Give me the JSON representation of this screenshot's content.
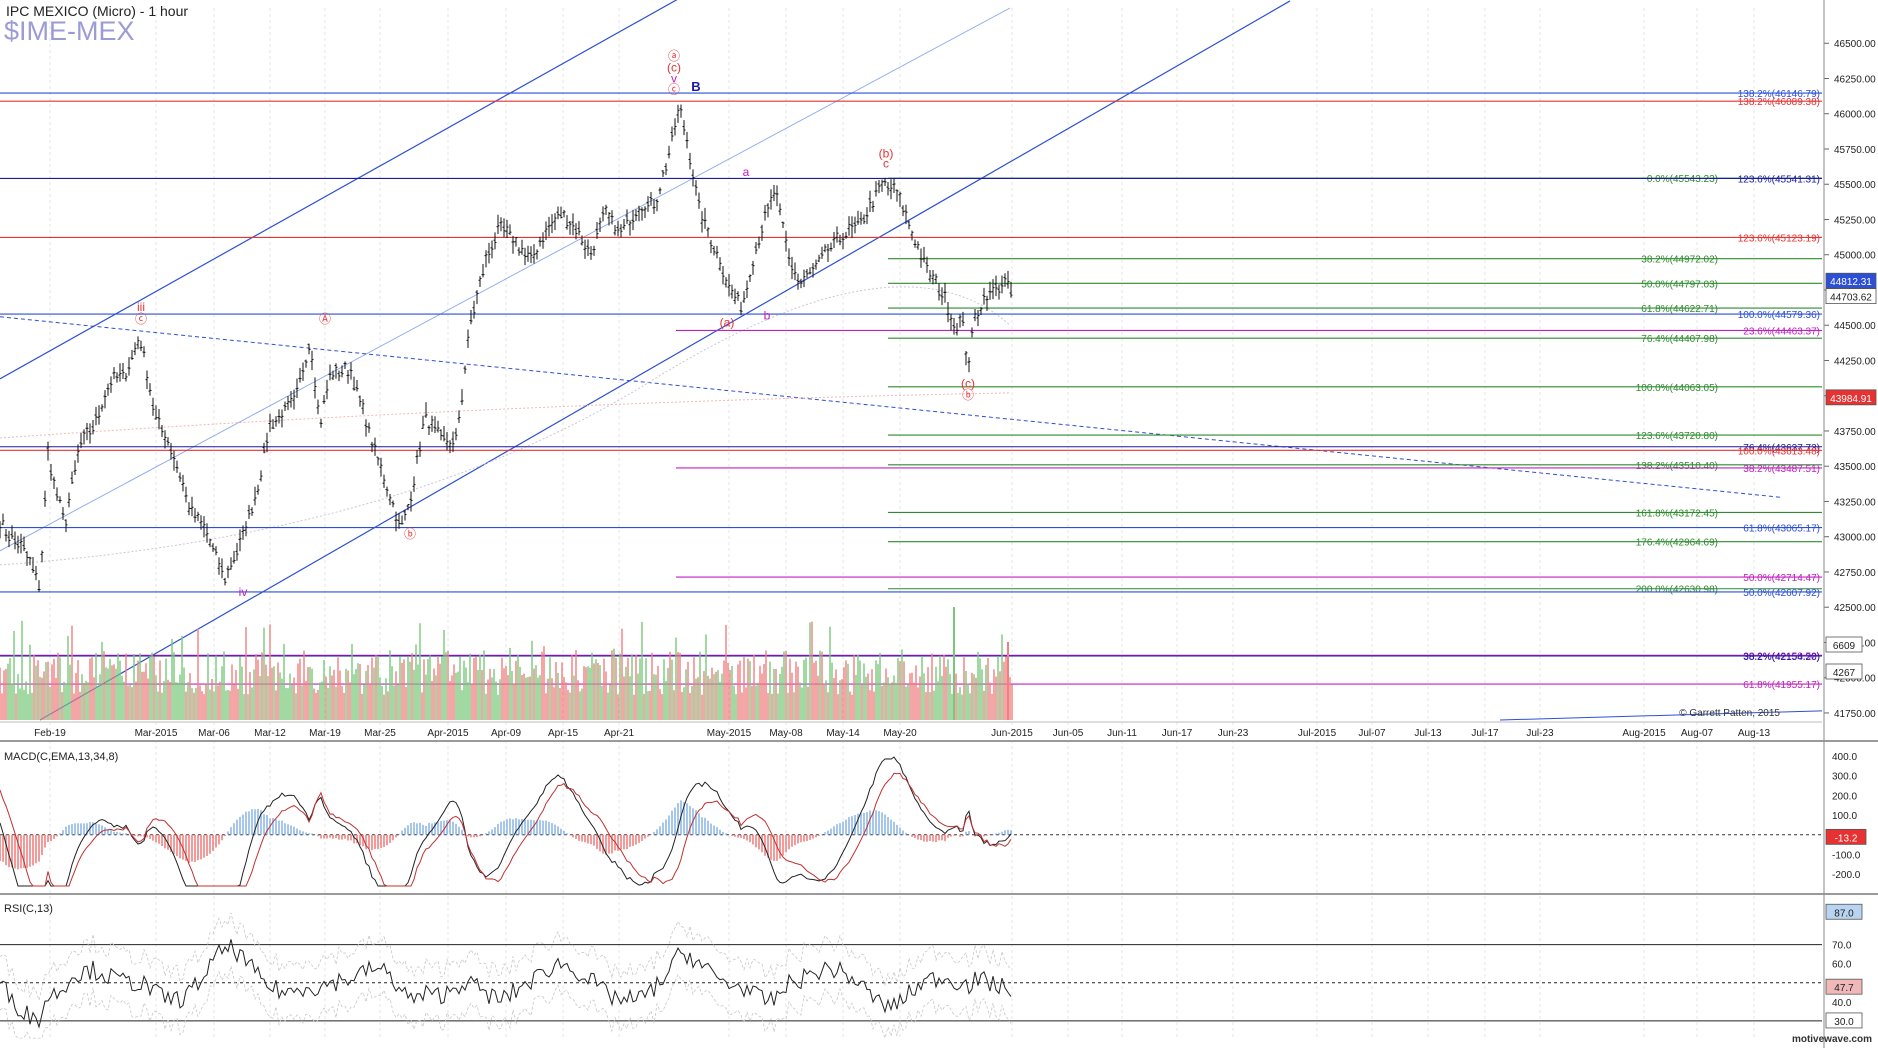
{
  "header": {
    "title": "IPC MEXICO (Micro) - 1 hour",
    "symbol": "$IME-MEX"
  },
  "watermark": "motivewave.com",
  "copyright": "© Garrett Patten, 2015",
  "colors": {
    "blue": "#2d4fd6",
    "red": "#e63232",
    "green": "#2e8b2e",
    "magenta": "#c020c0",
    "darkblue": "#1a1aa0",
    "price_bar": "#111111",
    "vol_up": "#7ac77a",
    "vol_down": "#f08080",
    "hist_up": "#8fb8e8",
    "hist_down": "#f08080"
  },
  "chart_data": [
    {
      "type": "line",
      "name": "price",
      "ylim": [
        41700,
        46750
      ],
      "x_tick_labels": [
        "Feb-19",
        "Mar-2015",
        "Mar-06",
        "Mar-12",
        "Mar-19",
        "Mar-25",
        "Apr-2015",
        "Apr-09",
        "Apr-15",
        "Apr-21",
        "May-2015",
        "May-08",
        "May-14",
        "May-20",
        "Jun-2015",
        "Jun-05",
        "Jun-11",
        "Jun-17",
        "Jun-23",
        "Jul-2015",
        "Jul-07",
        "Jul-13",
        "Jul-17",
        "Jul-23",
        "Aug-2015",
        "Aug-07",
        "Aug-13"
      ],
      "y_ticks": [
        41750,
        42000,
        42250,
        42500,
        42750,
        43000,
        43250,
        43500,
        43750,
        44000,
        44250,
        44500,
        44750,
        45000,
        45250,
        45500,
        45750,
        46000,
        46250,
        46500
      ],
      "y_tick_labels": [
        "41750.00",
        "42000.00",
        "42250.00",
        "42500.00",
        "42750.00",
        "43000.00",
        "43250.00",
        "43500.00",
        "43750.00",
        "44000.00",
        "44250.00",
        "44500.00",
        "44750.00",
        "45000.00",
        "45250.00",
        "45500.00",
        "45750.00",
        "46000.00",
        "46250.00",
        "46500.00"
      ],
      "price_tags": [
        {
          "label": "44812.31",
          "value": 44812,
          "color": "#2d4fd6"
        },
        {
          "label": "44703.62",
          "value": 44703,
          "color": "#ffffff"
        },
        {
          "label": "43984.91",
          "value": 43985,
          "color": "#e63232"
        }
      ],
      "keypoints": [
        [
          0,
          43100
        ],
        [
          10,
          43000
        ],
        [
          25,
          42900
        ],
        [
          40,
          42650
        ],
        [
          48,
          43600
        ],
        [
          55,
          43350
        ],
        [
          65,
          43100
        ],
        [
          80,
          43650
        ],
        [
          95,
          43800
        ],
        [
          110,
          44100
        ],
        [
          125,
          44150
        ],
        [
          140,
          44420
        ],
        [
          155,
          43850
        ],
        [
          170,
          43650
        ],
        [
          190,
          43200
        ],
        [
          205,
          43050
        ],
        [
          225,
          42700
        ],
        [
          240,
          42950
        ],
        [
          258,
          43350
        ],
        [
          270,
          43800
        ],
        [
          295,
          43950
        ],
        [
          310,
          44400
        ],
        [
          320,
          43800
        ],
        [
          330,
          44150
        ],
        [
          350,
          44200
        ],
        [
          375,
          43600
        ],
        [
          390,
          43300
        ],
        [
          400,
          43050
        ],
        [
          410,
          43250
        ],
        [
          425,
          43850
        ],
        [
          440,
          43700
        ],
        [
          455,
          43650
        ],
        [
          462,
          44000
        ],
        [
          470,
          44500
        ],
        [
          485,
          44950
        ],
        [
          500,
          45200
        ],
        [
          515,
          45100
        ],
        [
          530,
          44950
        ],
        [
          545,
          45150
        ],
        [
          560,
          45300
        ],
        [
          575,
          45200
        ],
        [
          590,
          45000
        ],
        [
          605,
          45300
        ],
        [
          620,
          45150
        ],
        [
          640,
          45350
        ],
        [
          655,
          45350
        ],
        [
          670,
          45750
        ],
        [
          680,
          46050
        ],
        [
          690,
          45700
        ],
        [
          700,
          45300
        ],
        [
          715,
          45050
        ],
        [
          730,
          44750
        ],
        [
          742,
          44620
        ],
        [
          752,
          44950
        ],
        [
          762,
          45200
        ],
        [
          775,
          45450
        ],
        [
          790,
          44950
        ],
        [
          800,
          44800
        ],
        [
          815,
          44900
        ],
        [
          830,
          45050
        ],
        [
          845,
          45150
        ],
        [
          858,
          45200
        ],
        [
          870,
          45350
        ],
        [
          882,
          45500
        ],
        [
          896,
          45450
        ],
        [
          905,
          45300
        ],
        [
          915,
          45100
        ],
        [
          930,
          44850
        ],
        [
          945,
          44700
        ],
        [
          955,
          44480
        ],
        [
          962,
          44550
        ],
        [
          968,
          44200
        ],
        [
          975,
          44550
        ],
        [
          985,
          44700
        ],
        [
          995,
          44750
        ],
        [
          1005,
          44812
        ],
        [
          1012,
          44712
        ]
      ]
    },
    {
      "type": "bar",
      "name": "volume",
      "tags": [
        {
          "label": "6609",
          "value": 6609
        },
        {
          "label": "4267",
          "value": 4267
        }
      ]
    },
    {
      "type": "line",
      "name": "MACD(C,EMA,13,34,8)",
      "ylim": [
        -280,
        460
      ],
      "y_ticks": [
        400,
        300,
        200,
        100,
        -100,
        -200
      ],
      "y_tick_labels": [
        "400.0",
        "300.0",
        "200.0",
        "100.0",
        "-100.0",
        "-200.0"
      ],
      "tag": {
        "label": "-13.2",
        "value": -13.2
      }
    },
    {
      "type": "line",
      "name": "RSI(C,13)",
      "ylim": [
        20,
        95
      ],
      "y_ticks": [
        70,
        60,
        40
      ],
      "y_tick_labels": [
        "70.0",
        "60.0",
        "40.0"
      ],
      "tags": [
        {
          "label": "87.0",
          "value": 87,
          "bg": "#b8d4f0"
        },
        {
          "label": "47.7",
          "value": 47.7,
          "bg": "#f0b8b8"
        },
        {
          "label": "30.0",
          "value": 30,
          "bg": "#ffffff"
        }
      ]
    }
  ],
  "fib_levels": [
    {
      "label": "138.2%(46146.79)",
      "value": 46147,
      "color": "#2d4fd6",
      "x_start": 0,
      "label_right": true
    },
    {
      "label": "138.2%(46089.38)",
      "value": 46089,
      "color": "#e63232",
      "x_start": 0,
      "label_right": true
    },
    {
      "label": "0.0%(45543.23)",
      "value": 45543,
      "color": "#2e8b2e",
      "x_start": 888,
      "label_right": false
    },
    {
      "label": "123.6%(45541.31)",
      "value": 45541,
      "color": "#1a1aa0",
      "x_start": 0,
      "label_right": true
    },
    {
      "label": "123.6%(45123.19)",
      "value": 45123,
      "color": "#e63232",
      "x_start": 0,
      "label_right": true
    },
    {
      "label": "38.2%(44972.02)",
      "value": 44972,
      "color": "#2e8b2e",
      "x_start": 888,
      "label_right": false
    },
    {
      "label": "50.0%(44797.03)",
      "value": 44797,
      "color": "#2e8b2e",
      "x_start": 888,
      "label_right": false
    },
    {
      "label": "61.8%(44622.71)",
      "value": 44622,
      "color": "#2e8b2e",
      "x_start": 888,
      "label_right": false
    },
    {
      "label": "100.0%(44579.36)",
      "value": 44579,
      "color": "#2d4fd6",
      "x_start": 0,
      "label_right": true
    },
    {
      "label": "23.6%(44463.37)",
      "value": 44463,
      "color": "#c020c0",
      "x_start": 676,
      "label_right": true
    },
    {
      "label": "76.4%(44407.98)",
      "value": 44408,
      "color": "#2e8b2e",
      "x_start": 888,
      "label_right": false
    },
    {
      "label": "100.0%(44063.05)",
      "value": 44063,
      "color": "#2e8b2e",
      "x_start": 888,
      "label_right": false
    },
    {
      "label": "123.6%(43720.80)",
      "value": 43721,
      "color": "#2e8b2e",
      "x_start": 888,
      "label_right": false
    },
    {
      "label": "76.4%(43637.73)",
      "value": 43638,
      "color": "#1a1aa0",
      "x_start": 0,
      "label_right": true
    },
    {
      "label": "100.0%(43613.48)",
      "value": 43613,
      "color": "#e63232",
      "x_start": 0,
      "label_right": true
    },
    {
      "label": "138.2%(43510.40)",
      "value": 43510,
      "color": "#2e8b2e",
      "x_start": 888,
      "label_right": false
    },
    {
      "label": "38.2%(43487.51)",
      "value": 43488,
      "color": "#c020c0",
      "x_start": 676,
      "label_right": true
    },
    {
      "label": "161.8%(43172.45)",
      "value": 43172,
      "color": "#2e8b2e",
      "x_start": 888,
      "label_right": false
    },
    {
      "label": "61.8%(43065.17)",
      "value": 43065,
      "color": "#2d4fd6",
      "x_start": 0,
      "label_right": true
    },
    {
      "label": "176.4%(42964.69)",
      "value": 42965,
      "color": "#2e8b2e",
      "x_start": 888,
      "label_right": false
    },
    {
      "label": "50.0%(42714.47)",
      "value": 42714,
      "color": "#c020c0",
      "x_start": 676,
      "label_right": true
    },
    {
      "label": "200.0%(42630.98)",
      "value": 42631,
      "color": "#2e8b2e",
      "x_start": 888,
      "label_right": false
    },
    {
      "label": "50.0%(42607.92)",
      "value": 42608,
      "color": "#2d4fd6",
      "x_start": 0,
      "label_right": true
    },
    {
      "label": "38.2%(42158.52)",
      "value": 42159,
      "color": "#c020c0",
      "x_start": 0,
      "label_right": true
    },
    {
      "label": "38.2%(42154.20)",
      "value": 42154,
      "color": "#1a1aa0",
      "x_start": 0,
      "label_right": true
    },
    {
      "label": "61.8%(41955.17)",
      "value": 41955,
      "color": "#c020c0",
      "x_start": 0,
      "label_right": true
    }
  ],
  "wave_labels": [
    {
      "text": "ⓐ",
      "x": 674,
      "value": 46380,
      "color": "#e63232"
    },
    {
      "text": "(c)",
      "x": 674,
      "value": 46300,
      "color": "#e63232"
    },
    {
      "text": "v",
      "x": 674,
      "value": 46220,
      "color": "#c020c0"
    },
    {
      "text": "ⓒ",
      "x": 674,
      "value": 46145,
      "color": "#e63232"
    },
    {
      "text": "B",
      "x": 696,
      "value": 46160,
      "color": "#1a1aa0",
      "bold": true
    },
    {
      "text": "(b)",
      "x": 886,
      "value": 45690,
      "color": "#e63232"
    },
    {
      "text": "c",
      "x": 886,
      "value": 45620,
      "color": "#e63232"
    },
    {
      "text": "a",
      "x": 746,
      "value": 45560,
      "color": "#c020c0"
    },
    {
      "text": "iii",
      "x": 141,
      "value": 44600,
      "color": "#e63232"
    },
    {
      "text": "ⓒ",
      "x": 141,
      "value": 44515,
      "color": "#e63232"
    },
    {
      "text": "Ⓐ",
      "x": 325,
      "value": 44515,
      "color": "#e63232"
    },
    {
      "text": "(a)",
      "x": 727,
      "value": 44490,
      "color": "#e63232"
    },
    {
      "text": "b",
      "x": 767,
      "value": 44540,
      "color": "#c020c0"
    },
    {
      "text": "(c)",
      "x": 968,
      "value": 44060,
      "color": "#e63232"
    },
    {
      "text": "ⓑ",
      "x": 968,
      "value": 43975,
      "color": "#e63232"
    },
    {
      "text": "ⓑ",
      "x": 410,
      "value": 42990,
      "color": "#e63232"
    },
    {
      "text": "iv",
      "x": 243,
      "value": 42580,
      "color": "#c020c0"
    }
  ]
}
